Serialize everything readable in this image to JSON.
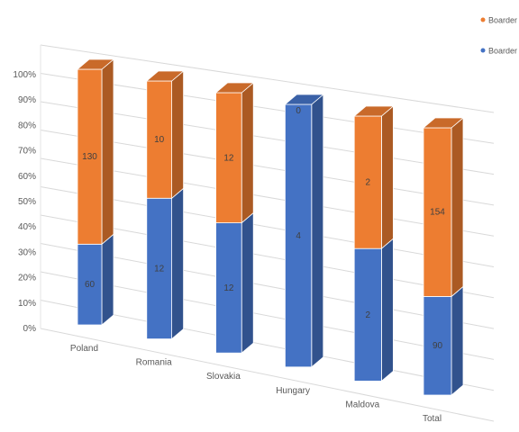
{
  "chart_data": {
    "type": "bar",
    "stacked": "percent",
    "view": "3d",
    "categories": [
      "Poland",
      "Romania",
      "Slovakia",
      "Hungary",
      "Maldova",
      "Total"
    ],
    "series": [
      {
        "name": "Boarder",
        "color": "#4472C4",
        "values": [
          60,
          12,
          12,
          4,
          2,
          90
        ]
      },
      {
        "name": "Boarder",
        "color": "#ED7D31",
        "values": [
          130,
          10,
          12,
          0,
          2,
          154
        ]
      }
    ],
    "y_ticks": [
      "0%",
      "10%",
      "20%",
      "30%",
      "40%",
      "50%",
      "60%",
      "70%",
      "80%",
      "90%",
      "100%"
    ],
    "ylim": [
      0,
      100
    ],
    "grid": true,
    "legend_position": "top-right",
    "title": "",
    "xlabel": "",
    "ylabel": ""
  }
}
